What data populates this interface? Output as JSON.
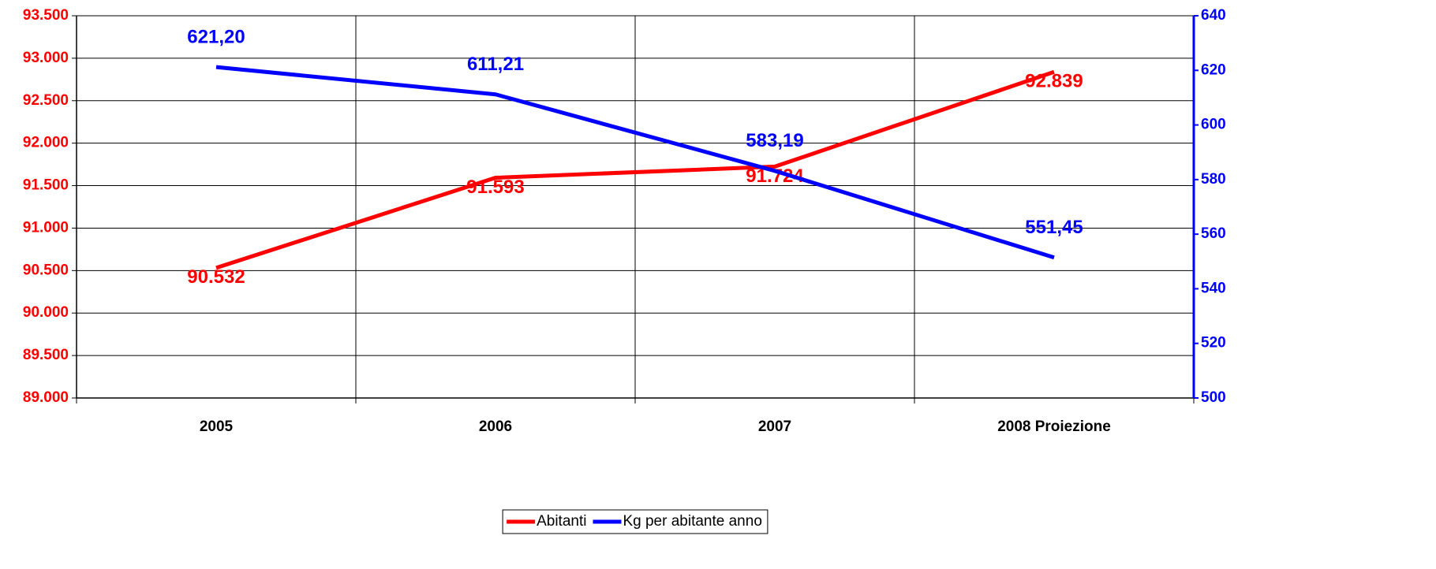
{
  "chart_data": {
    "type": "line",
    "categories": [
      "2005",
      "2006",
      "2007",
      "2008 Proiezione"
    ],
    "series": [
      {
        "name": "Abitanti",
        "color": "#ff0000",
        "values": [
          90532,
          91593,
          91724,
          92839
        ],
        "value_labels": [
          "90.532",
          "91.593",
          "91.724",
          "92.839"
        ]
      },
      {
        "name": "Kg per abitante anno",
        "color": "#0000ff",
        "axis": "y2",
        "values": [
          621.2,
          611.21,
          583.19,
          551.45
        ],
        "value_labels": [
          "621,20",
          "611,21",
          "583,19",
          "551,45"
        ]
      }
    ],
    "ylim": [
      89000,
      93500
    ],
    "yticks": [
      {
        "value": 89000,
        "label": "89.000"
      },
      {
        "value": 89500,
        "label": "89.500"
      },
      {
        "value": 90000,
        "label": "90.000"
      },
      {
        "value": 90500,
        "label": "90.500"
      },
      {
        "value": 91000,
        "label": "91.000"
      },
      {
        "value": 91500,
        "label": "91.500"
      },
      {
        "value": 92000,
        "label": "92.000"
      },
      {
        "value": 92500,
        "label": "92.500"
      },
      {
        "value": 93000,
        "label": "93.000"
      },
      {
        "value": 93500,
        "label": "93.500"
      }
    ],
    "y2lim": [
      500,
      640
    ],
    "y2ticks": [
      500,
      520,
      540,
      560,
      580,
      600,
      620,
      640
    ],
    "grid": true,
    "legend": "bottom"
  }
}
